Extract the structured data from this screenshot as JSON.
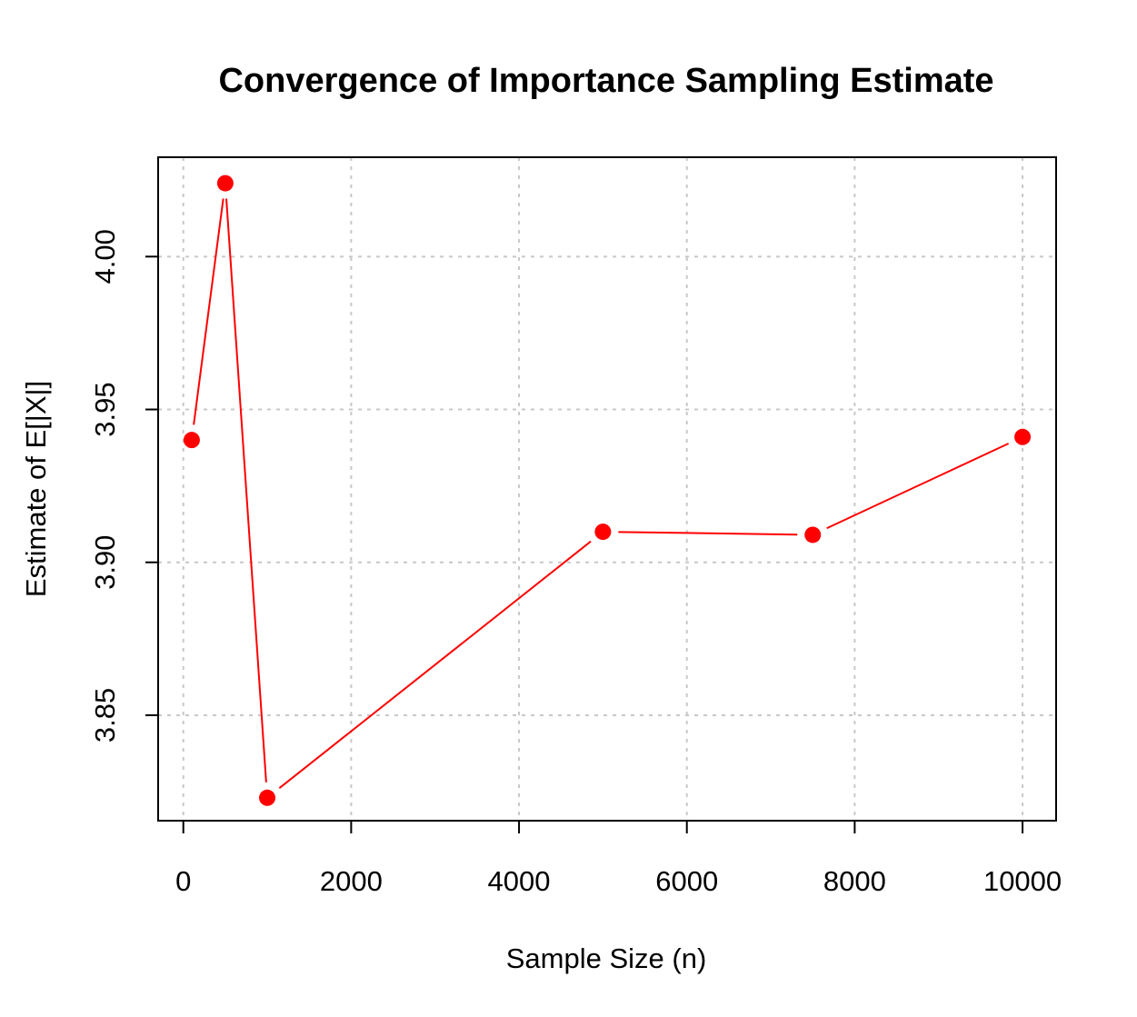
{
  "chart_data": {
    "type": "line",
    "title": "Convergence of Importance Sampling Estimate",
    "xlabel": "Sample Size (n)",
    "ylabel": "Estimate of E[|X|]",
    "x": [
      100,
      500,
      1000,
      5000,
      7500,
      10000
    ],
    "series": [
      {
        "values": [
          3.94,
          4.024,
          3.823,
          3.91,
          3.909,
          3.941
        ],
        "color": "#ff0000"
      }
    ],
    "xlim": [
      -300,
      10400
    ],
    "ylim": [
      3.8155,
      4.0325
    ],
    "x_ticks": [
      0,
      2000,
      4000,
      6000,
      8000,
      10000
    ],
    "x_tick_labels": [
      "0",
      "2000",
      "4000",
      "6000",
      "8000",
      "10000"
    ],
    "y_ticks": [
      3.85,
      3.9,
      3.95,
      4.0
    ],
    "y_tick_labels": [
      "3.85",
      "3.90",
      "3.95",
      "4.00"
    ],
    "grid": true,
    "marker": "filled-circle"
  }
}
